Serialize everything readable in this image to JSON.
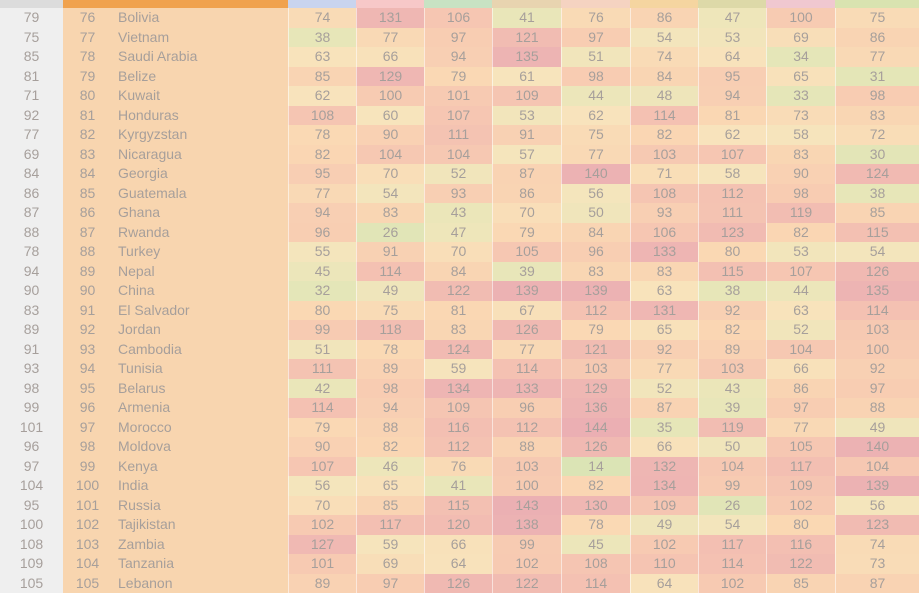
{
  "chart_data": {
    "type": "table",
    "top_strip_colors": [
      "#dcdcdc",
      "#f0a24e",
      "#f0a24e",
      "#c9d4ee",
      "#f7c8c8",
      "#c8e2c3",
      "#e8d4b0",
      "#f5d3c1",
      "#f5d5a0",
      "#ddd9a8",
      "#f0c8d0",
      "#d9e3b0"
    ],
    "rows": [
      {
        "prev": "79",
        "rank": "76",
        "name": "Bolivia",
        "values": [
          74,
          131,
          106,
          41,
          76,
          86,
          47,
          100,
          75
        ]
      },
      {
        "prev": "75",
        "rank": "77",
        "name": "Vietnam",
        "values": [
          38,
          77,
          97,
          121,
          97,
          54,
          53,
          69,
          86
        ]
      },
      {
        "prev": "85",
        "rank": "78",
        "name": "Saudi Arabia",
        "values": [
          63,
          66,
          94,
          135,
          51,
          74,
          64,
          34,
          77
        ]
      },
      {
        "prev": "81",
        "rank": "79",
        "name": "Belize",
        "values": [
          85,
          129,
          79,
          61,
          98,
          84,
          95,
          65,
          31
        ]
      },
      {
        "prev": "71",
        "rank": "80",
        "name": "Kuwait",
        "values": [
          62,
          100,
          101,
          109,
          44,
          48,
          94,
          33,
          98
        ]
      },
      {
        "prev": "92",
        "rank": "81",
        "name": "Honduras",
        "values": [
          108,
          60,
          107,
          53,
          62,
          114,
          81,
          73,
          83
        ]
      },
      {
        "prev": "77",
        "rank": "82",
        "name": "Kyrgyzstan",
        "values": [
          78,
          90,
          111,
          91,
          75,
          82,
          62,
          58,
          72
        ]
      },
      {
        "prev": "69",
        "rank": "83",
        "name": "Nicaragua",
        "values": [
          82,
          104,
          104,
          57,
          77,
          103,
          107,
          83,
          30
        ]
      },
      {
        "prev": "84",
        "rank": "84",
        "name": "Georgia",
        "values": [
          95,
          70,
          52,
          87,
          140,
          71,
          58,
          90,
          124
        ]
      },
      {
        "prev": "86",
        "rank": "85",
        "name": "Guatemala",
        "values": [
          77,
          54,
          93,
          86,
          56,
          108,
          112,
          98,
          38
        ]
      },
      {
        "prev": "87",
        "rank": "86",
        "name": "Ghana",
        "values": [
          94,
          83,
          43,
          70,
          50,
          93,
          111,
          119,
          85
        ]
      },
      {
        "prev": "88",
        "rank": "87",
        "name": "Rwanda",
        "values": [
          96,
          26,
          47,
          79,
          84,
          106,
          123,
          82,
          115
        ]
      },
      {
        "prev": "78",
        "rank": "88",
        "name": "Turkey",
        "values": [
          55,
          91,
          70,
          105,
          96,
          133,
          80,
          53,
          54
        ]
      },
      {
        "prev": "94",
        "rank": "89",
        "name": "Nepal",
        "values": [
          45,
          114,
          84,
          39,
          83,
          83,
          115,
          107,
          126
        ]
      },
      {
        "prev": "90",
        "rank": "90",
        "name": "China",
        "values": [
          32,
          49,
          122,
          139,
          139,
          63,
          38,
          44,
          135
        ]
      },
      {
        "prev": "83",
        "rank": "91",
        "name": "El Salvador",
        "values": [
          80,
          75,
          81,
          67,
          112,
          131,
          92,
          63,
          114
        ]
      },
      {
        "prev": "89",
        "rank": "92",
        "name": "Jordan",
        "values": [
          99,
          118,
          83,
          126,
          79,
          65,
          82,
          52,
          103
        ]
      },
      {
        "prev": "91",
        "rank": "93",
        "name": "Cambodia",
        "values": [
          51,
          78,
          124,
          77,
          121,
          92,
          89,
          104,
          100
        ]
      },
      {
        "prev": "93",
        "rank": "94",
        "name": "Tunisia",
        "values": [
          111,
          89,
          59,
          114,
          103,
          77,
          103,
          66,
          92
        ]
      },
      {
        "prev": "98",
        "rank": "95",
        "name": "Belarus",
        "values": [
          42,
          98,
          134,
          133,
          129,
          52,
          43,
          86,
          97
        ]
      },
      {
        "prev": "99",
        "rank": "96",
        "name": "Armenia",
        "values": [
          114,
          94,
          109,
          96,
          136,
          87,
          39,
          97,
          88
        ]
      },
      {
        "prev": "101",
        "rank": "97",
        "name": "Morocco",
        "values": [
          79,
          88,
          116,
          112,
          144,
          35,
          119,
          77,
          49
        ]
      },
      {
        "prev": "96",
        "rank": "98",
        "name": "Moldova",
        "values": [
          90,
          82,
          112,
          88,
          126,
          66,
          50,
          105,
          140
        ]
      },
      {
        "prev": "97",
        "rank": "99",
        "name": "Kenya",
        "values": [
          107,
          46,
          76,
          103,
          14,
          132,
          104,
          117,
          104
        ]
      },
      {
        "prev": "104",
        "rank": "100",
        "name": "India",
        "values": [
          56,
          65,
          41,
          100,
          82,
          134,
          99,
          109,
          139
        ]
      },
      {
        "prev": "95",
        "rank": "101",
        "name": "Russia",
        "values": [
          70,
          85,
          115,
          143,
          130,
          109,
          26,
          102,
          56
        ]
      },
      {
        "prev": "100",
        "rank": "102",
        "name": "Tajikistan",
        "values": [
          102,
          117,
          120,
          138,
          78,
          49,
          54,
          80,
          123
        ]
      },
      {
        "prev": "108",
        "rank": "103",
        "name": "Zambia",
        "values": [
          127,
          59,
          66,
          99,
          45,
          102,
          117,
          116,
          74
        ]
      },
      {
        "prev": "109",
        "rank": "104",
        "name": "Tanzania",
        "values": [
          101,
          69,
          64,
          102,
          108,
          110,
          114,
          122,
          73
        ]
      },
      {
        "prev": "105",
        "rank": "105",
        "name": "Lebanon",
        "values": [
          89,
          97,
          126,
          122,
          114,
          64,
          102,
          85,
          87
        ]
      }
    ]
  }
}
